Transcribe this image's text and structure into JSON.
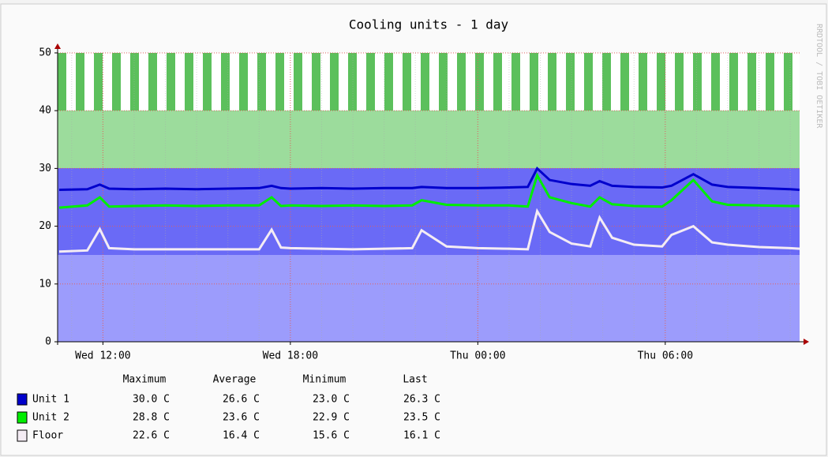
{
  "chart_data": {
    "type": "line",
    "title": "Cooling units - 1 day",
    "watermark": "RRDTOOL / TOBI OETIKER",
    "x": [
      -1.4,
      -0.5,
      -0.1,
      0.2,
      1,
      2,
      3,
      4,
      5,
      5.4,
      5.7,
      6,
      7,
      8,
      9,
      9.9,
      10.2,
      11,
      12,
      13,
      13.6,
      13.9,
      14.3,
      15,
      15.6,
      15.9,
      16.3,
      17,
      17.9,
      18.2,
      18.9,
      19.5,
      20,
      21,
      22,
      22.3
    ],
    "series": [
      {
        "name": "Unit 1",
        "color": "#0000cc",
        "values": [
          26.3,
          26.4,
          27.2,
          26.5,
          26.4,
          26.5,
          26.4,
          26.5,
          26.6,
          27,
          26.6,
          26.5,
          26.6,
          26.5,
          26.6,
          26.6,
          26.8,
          26.6,
          26.6,
          26.7,
          26.8,
          30.0,
          28,
          27.3,
          27,
          27.8,
          27,
          26.8,
          26.7,
          27,
          29,
          27.2,
          26.8,
          26.6,
          26.4,
          26.3
        ]
      },
      {
        "name": "Unit 2",
        "color": "#00ee00",
        "values": [
          23.2,
          23.6,
          25,
          23.4,
          23.5,
          23.6,
          23.5,
          23.6,
          23.6,
          25,
          23.5,
          23.6,
          23.5,
          23.6,
          23.5,
          23.6,
          24.5,
          23.7,
          23.6,
          23.6,
          23.4,
          28.8,
          25,
          24,
          23.4,
          25,
          23.8,
          23.5,
          23.4,
          24.5,
          28,
          24.3,
          23.7,
          23.6,
          23.5,
          23.5
        ]
      },
      {
        "name": "Floor",
        "color": "#f4ecf4",
        "values": [
          15.6,
          15.8,
          19.5,
          16.2,
          16,
          16,
          16,
          16,
          16,
          19.4,
          16.3,
          16.2,
          16.1,
          16,
          16.1,
          16.2,
          19.3,
          16.5,
          16.2,
          16.1,
          16,
          22.6,
          19,
          17,
          16.5,
          21.5,
          18,
          16.8,
          16.5,
          18.5,
          20,
          17.2,
          16.8,
          16.4,
          16.2,
          16.1
        ]
      }
    ],
    "xlim": [
      -1.45,
      22.3
    ],
    "xticks": [
      {
        "value": 0,
        "label": "Wed 12:00"
      },
      {
        "value": 6,
        "label": "Wed 18:00"
      },
      {
        "value": 12,
        "label": "Thu 00:00"
      },
      {
        "value": 18,
        "label": "Thu 06:00"
      }
    ],
    "ylim": [
      0,
      50
    ],
    "yticks": [
      0,
      10,
      20,
      30,
      40,
      50
    ],
    "grid": true,
    "stats": {
      "columns": [
        "Maximum",
        "Average",
        "Minimum",
        "Last"
      ],
      "rows": [
        [
          "30.0 C",
          "26.6 C",
          "23.0 C",
          "26.3 C"
        ],
        [
          "28.8 C",
          "23.6 C",
          "22.9 C",
          "23.5 C"
        ],
        [
          "22.6 C",
          "16.4 C",
          "15.6 C",
          "16.1 C"
        ]
      ]
    }
  }
}
